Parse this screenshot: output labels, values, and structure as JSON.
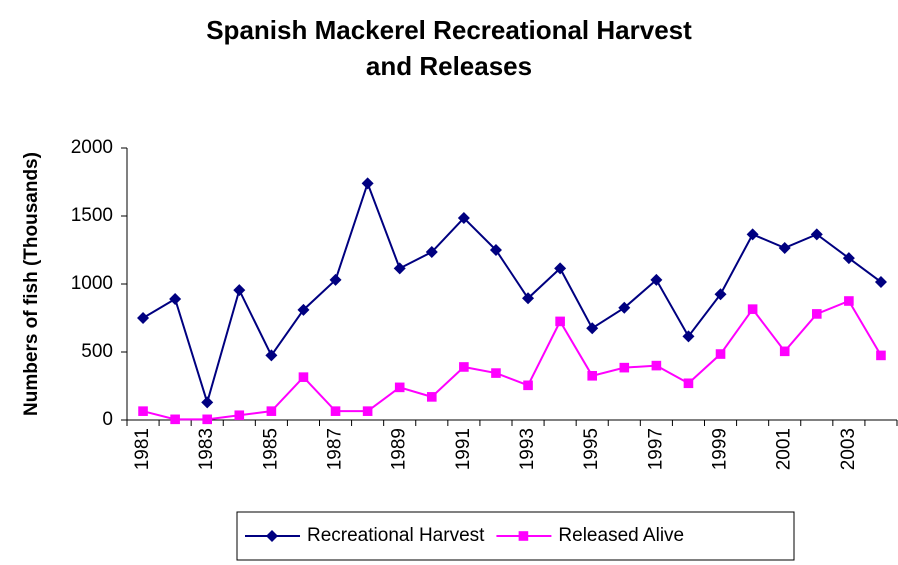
{
  "chart_data": {
    "type": "line",
    "title": "Spanish Mackerel Recreational Harvest and Releases",
    "y_label": "Numbers of fish (Thousands)",
    "categories": [
      "1981",
      null,
      "1983",
      null,
      "1985",
      null,
      "1987",
      null,
      "1989",
      null,
      "1991",
      null,
      "1993",
      null,
      "1995",
      null,
      "1997",
      null,
      "1999",
      null,
      "2001",
      null,
      "2003",
      null
    ],
    "series": [
      {
        "name": "Recreational Harvest",
        "color": "#000080",
        "marker": "diamond",
        "values": [
          750,
          890,
          130,
          955,
          475,
          810,
          1030,
          1740,
          1115,
          1235,
          1485,
          1250,
          895,
          1115,
          675,
          825,
          1030,
          615,
          925,
          1365,
          1265,
          1365,
          1190,
          1015
        ]
      },
      {
        "name": "Released Alive",
        "color": "#ff00ff",
        "marker": "square",
        "values": [
          65,
          5,
          5,
          35,
          65,
          315,
          65,
          65,
          240,
          170,
          390,
          345,
          255,
          725,
          325,
          385,
          400,
          270,
          485,
          815,
          505,
          780,
          875,
          475
        ]
      }
    ],
    "ylim": [
      0,
      2000
    ],
    "yticks": [
      0,
      500,
      1000,
      1500,
      2000
    ],
    "grid": false,
    "legend": "bottom"
  }
}
